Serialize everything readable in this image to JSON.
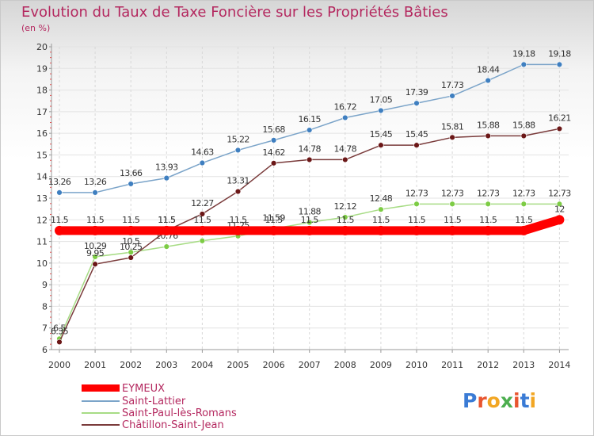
{
  "title": "Evolution du Taux de Taxe Foncière sur les Propriétés Bâties",
  "unit": "(en %)",
  "logo": {
    "text": "Proxiti",
    "colors": [
      "#3a7bd5",
      "#e8552f",
      "#f2a623",
      "#4cae4f",
      "#e8552f",
      "#3a7bd5",
      "#f2a623"
    ]
  },
  "chart_data": {
    "type": "line",
    "title": "Evolution du Taux de Taxe Foncière sur les Propriétés Bâties",
    "ylabel": "(en %)",
    "xlabel": "",
    "ylim": [
      6,
      20
    ],
    "yticks": [
      "6",
      "7",
      "8",
      "9",
      "10",
      "11",
      "12",
      "13",
      "14",
      "15",
      "16",
      "17",
      "18",
      "19",
      "20"
    ],
    "categories": [
      "2000",
      "2001",
      "2002",
      "2003",
      "2004",
      "2005",
      "2006",
      "2007",
      "2008",
      "2009",
      "2010",
      "2011",
      "2012",
      "2013",
      "2014"
    ],
    "series": [
      {
        "name": "Saint-Lattier",
        "color": "#7ba4c9",
        "marker": "#3f7fc0",
        "values": [
          13.26,
          13.26,
          13.66,
          13.93,
          14.63,
          15.22,
          15.68,
          16.15,
          16.72,
          17.05,
          17.39,
          17.73,
          18.44,
          19.18,
          19.18
        ],
        "labels": [
          "13.26",
          "13.26",
          "13.66",
          "13.93",
          "14.63",
          "15.22",
          "15.68",
          "16.15",
          "16.72",
          "17.05",
          "17.39",
          "17.73",
          "18.44",
          "19.18",
          "19.18"
        ]
      },
      {
        "name": "Saint-Paul-lès-Romans",
        "color": "#a7dc85",
        "marker": "#7dcc45",
        "values": [
          6.5,
          10.29,
          10.5,
          10.76,
          11.03,
          11.25,
          11.59,
          11.88,
          12.12,
          12.48,
          12.73,
          12.73,
          12.73,
          12.73,
          12.73
        ],
        "labels": [
          "6.5",
          "10.29",
          "10.5",
          "10.76",
          "11.03",
          "11.25",
          "11.59",
          "11.88",
          "12.12",
          "12.48",
          "12.73",
          "12.73",
          "12.73",
          "12.73",
          "12.73"
        ]
      },
      {
        "name": "Châtillon-Saint-Jean",
        "color": "#7a3b3b",
        "marker": "#6b1717",
        "values": [
          6.35,
          9.95,
          10.25,
          11.5,
          12.27,
          13.31,
          14.62,
          14.78,
          14.78,
          15.45,
          15.45,
          15.81,
          15.88,
          15.88,
          16.21
        ],
        "labels": [
          "6.35",
          "9.95",
          "10.25",
          "11.5",
          "12.27",
          "13.31",
          "14.62",
          "14.78",
          "14.78",
          "15.45",
          "15.45",
          "15.81",
          "15.88",
          "15.88",
          "16.21"
        ]
      },
      {
        "name": "EYMEUX",
        "color": "#ff0000",
        "marker": "#ff0000",
        "values": [
          11.5,
          11.5,
          11.5,
          11.5,
          11.5,
          11.5,
          11.5,
          11.5,
          11.5,
          11.5,
          11.5,
          11.5,
          11.5,
          11.5,
          12
        ],
        "labels": [
          "11.5",
          "11.5",
          "11.5",
          "11.5",
          "11.5",
          "11.5",
          "11.5",
          "11.5",
          "11.5",
          "11.5",
          "11.5",
          "11.5",
          "11.5",
          "11.5",
          "12"
        ]
      }
    ],
    "legend": [
      "EYMEUX",
      "Saint-Lattier",
      "Saint-Paul-lès-Romans",
      "Châtillon-Saint-Jean"
    ]
  }
}
